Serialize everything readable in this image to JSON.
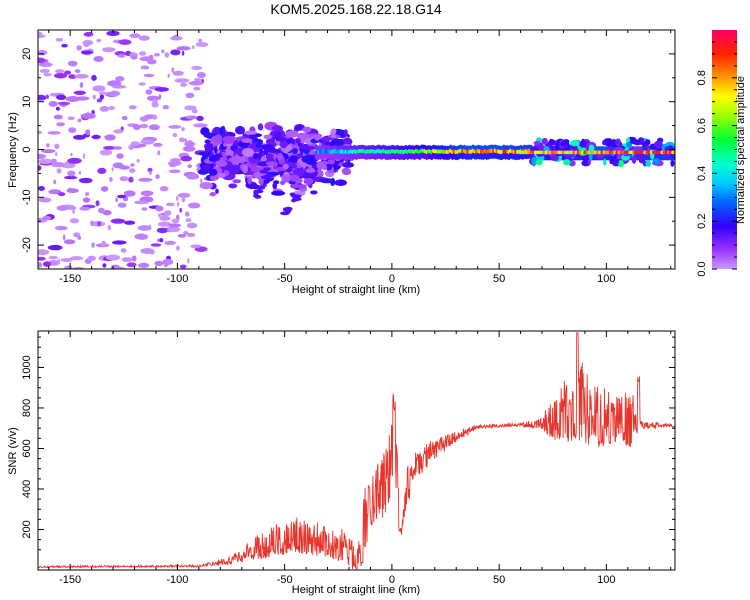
{
  "title": "KOM5.2025.168.22.18.G14",
  "chart_data": [
    {
      "type": "heatmap",
      "xlabel": "Height of straight line (km)",
      "ylabel": "Frequency (Hz)",
      "xlim": [
        -165,
        132
      ],
      "ylim": [
        -25,
        25
      ],
      "x_ticks": [
        -150,
        -100,
        -50,
        0,
        50,
        100
      ],
      "y_ticks": [
        -20,
        -10,
        0,
        10,
        20
      ],
      "colorbar": {
        "label": "Normalized spectral amplitude",
        "range": [
          0,
          1
        ],
        "ticks": [
          0.0,
          0.2,
          0.4,
          0.6,
          0.8
        ],
        "colormap": "rainbow"
      },
      "carrier_line": {
        "start_height": -35,
        "frequency": 0,
        "amplitude_profile": [
          {
            "h": -35,
            "a": 0.3
          },
          {
            "h": -10,
            "a": 0.45
          },
          {
            "h": 15,
            "a": 0.6
          },
          {
            "h": 35,
            "a": 0.85
          },
          {
            "h": 65,
            "a": 0.8
          },
          {
            "h": 132,
            "a": 0.95
          }
        ]
      },
      "noise_regions": [
        {
          "h_start": -165,
          "h_end": -88,
          "f_range": [
            -25,
            25
          ],
          "amplitude": 0.05
        },
        {
          "h_start": -88,
          "h_end": -20,
          "f_range": [
            -15,
            5
          ],
          "amplitude": 0.2
        },
        {
          "h_start": 65,
          "h_end": 132,
          "f_range": [
            -3,
            2
          ],
          "amplitude": 0.3
        }
      ]
    },
    {
      "type": "line",
      "xlabel": "Height of straight line (km)",
      "ylabel": "SNR (v/v)",
      "xlim": [
        -165,
        132
      ],
      "ylim": [
        0,
        1180
      ],
      "x_ticks": [
        -150,
        -100,
        -50,
        0,
        50,
        100
      ],
      "y_ticks": [
        200,
        400,
        600,
        800,
        1000
      ],
      "color": "#e8352c",
      "envelope": [
        {
          "h": -165,
          "base": 15,
          "spread": 8
        },
        {
          "h": -90,
          "base": 18,
          "spread": 10
        },
        {
          "h": -75,
          "base": 40,
          "spread": 40
        },
        {
          "h": -60,
          "base": 100,
          "spread": 140
        },
        {
          "h": -45,
          "base": 140,
          "spread": 180
        },
        {
          "h": -30,
          "base": 110,
          "spread": 160
        },
        {
          "h": -20,
          "base": 80,
          "spread": 180
        },
        {
          "h": -16,
          "base": 40,
          "spread": 80
        },
        {
          "h": -13,
          "base": 250,
          "spread": 250
        },
        {
          "h": -8,
          "base": 380,
          "spread": 200
        },
        {
          "h": -3,
          "base": 420,
          "spread": 250
        },
        {
          "h": 1,
          "base": 600,
          "spread": 250
        },
        {
          "h": 4,
          "base": 320,
          "spread": 220
        },
        {
          "h": 10,
          "base": 500,
          "spread": 100
        },
        {
          "h": 20,
          "base": 600,
          "spread": 80
        },
        {
          "h": 30,
          "base": 660,
          "spread": 40
        },
        {
          "h": 40,
          "base": 705,
          "spread": 20
        },
        {
          "h": 60,
          "base": 715,
          "spread": 15
        },
        {
          "h": 70,
          "base": 715,
          "spread": 60
        },
        {
          "h": 72,
          "base": 700,
          "spread": 150
        },
        {
          "h": 80,
          "base": 720,
          "spread": 300
        },
        {
          "h": 87,
          "base": 760,
          "spread": 420
        },
        {
          "h": 95,
          "base": 700,
          "spread": 320
        },
        {
          "h": 105,
          "base": 700,
          "spread": 250
        },
        {
          "h": 112,
          "base": 690,
          "spread": 280
        },
        {
          "h": 116,
          "base": 710,
          "spread": 40
        },
        {
          "h": 132,
          "base": 710,
          "spread": 12
        }
      ]
    }
  ]
}
